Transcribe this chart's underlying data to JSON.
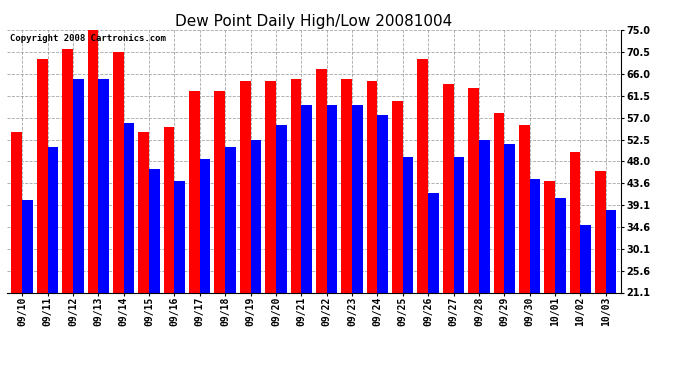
{
  "title": "Dew Point Daily High/Low 20081004",
  "copyright": "Copyright 2008 Cartronics.com",
  "dates": [
    "09/10",
    "09/11",
    "09/12",
    "09/13",
    "09/14",
    "09/15",
    "09/16",
    "09/17",
    "09/18",
    "09/19",
    "09/20",
    "09/21",
    "09/22",
    "09/23",
    "09/24",
    "09/25",
    "09/26",
    "09/27",
    "09/28",
    "09/29",
    "09/30",
    "10/01",
    "10/02",
    "10/03"
  ],
  "highs": [
    54.0,
    69.0,
    71.0,
    75.0,
    70.5,
    54.0,
    55.0,
    62.5,
    62.5,
    64.5,
    64.5,
    65.0,
    67.0,
    65.0,
    64.5,
    60.5,
    69.0,
    64.0,
    63.0,
    58.0,
    55.5,
    44.0,
    50.0,
    46.0
  ],
  "lows": [
    40.0,
    51.0,
    65.0,
    65.0,
    56.0,
    46.5,
    44.0,
    48.5,
    51.0,
    52.5,
    55.5,
    59.5,
    59.5,
    59.5,
    57.5,
    49.0,
    41.5,
    49.0,
    52.5,
    51.5,
    44.5,
    40.5,
    35.0,
    38.0
  ],
  "high_color": "#ff0000",
  "low_color": "#0000ff",
  "background_color": "#ffffff",
  "grid_color": "#808080",
  "ylim_min": 21.1,
  "ylim_max": 75.0,
  "yticks": [
    21.1,
    25.6,
    30.1,
    34.6,
    39.1,
    43.6,
    48.0,
    52.5,
    57.0,
    61.5,
    66.0,
    70.5,
    75.0
  ],
  "bar_width": 0.42,
  "title_fontsize": 11,
  "tick_fontsize": 7,
  "copyright_fontsize": 6.5
}
